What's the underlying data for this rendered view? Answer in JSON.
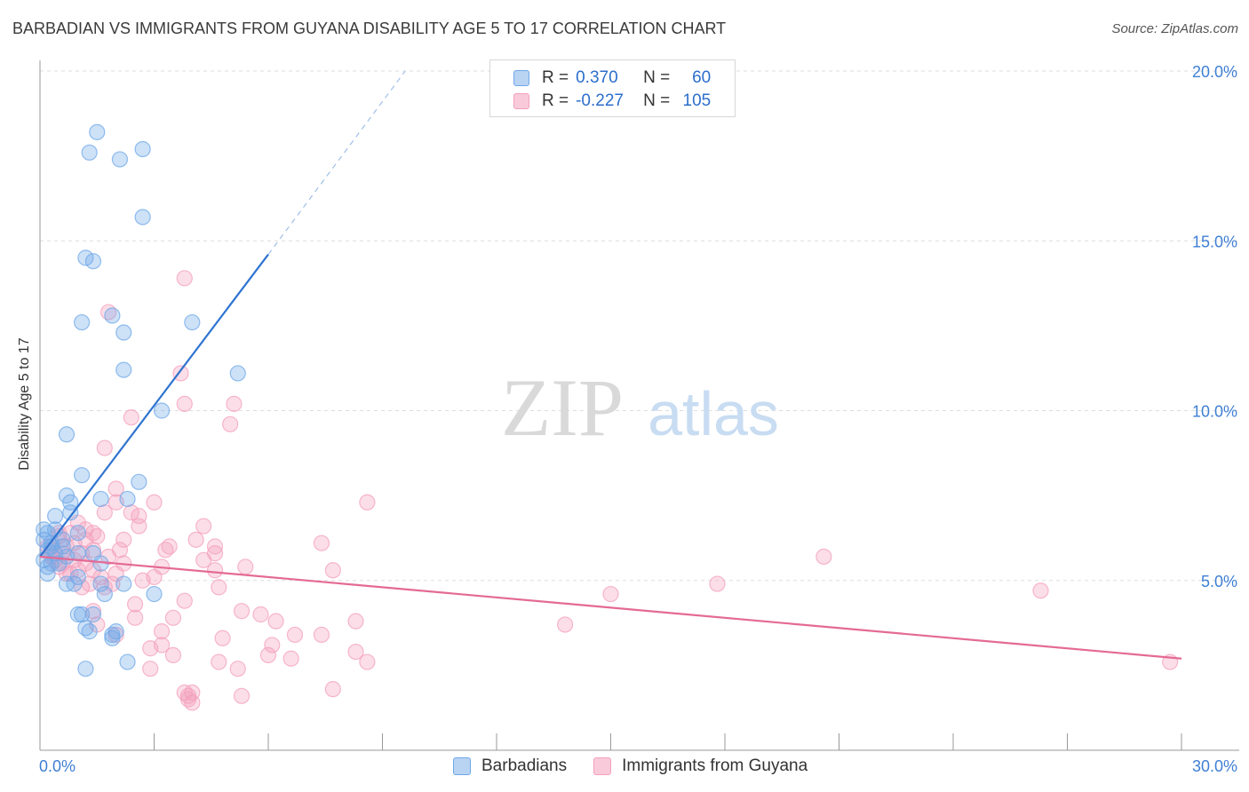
{
  "header": {
    "title": "BARBADIAN VS IMMIGRANTS FROM GUYANA DISABILITY AGE 5 TO 17 CORRELATION CHART",
    "source": "Source: ZipAtlas.com"
  },
  "watermark": {
    "zip": "ZIP",
    "atlas": "atlas"
  },
  "stats_legend": {
    "rows": [
      {
        "r_label": "R =",
        "r_value": "0.370",
        "n_label": "N =",
        "n_value": "60"
      },
      {
        "r_label": "R =",
        "r_value": "-0.227",
        "n_label": "N =",
        "n_value": "105"
      }
    ]
  },
  "colors": {
    "blue": "#6fa8e8",
    "blue_line": "#2f74d0",
    "pink": "#f4a0bc",
    "pink_line": "#e46a95",
    "tick_text": "#3f7fd4",
    "grid": "#dddddd"
  },
  "chart_data": {
    "type": "scatter",
    "title": "BARBADIAN VS IMMIGRANTS FROM GUYANA DISABILITY AGE 5 TO 17 CORRELATION CHART",
    "xlabel": "",
    "ylabel": "Disability Age 5 to 17",
    "xlim": [
      0,
      30
    ],
    "ylim": [
      0,
      20
    ],
    "x_tick_labels": [
      "0.0%",
      "30.0%"
    ],
    "y_ticks": [
      5,
      10,
      15,
      20
    ],
    "y_tick_labels": [
      "5.0%",
      "10.0%",
      "15.0%",
      "20.0%"
    ],
    "grid": true,
    "legend_position": "bottom",
    "series": [
      {
        "name": "Barbadians",
        "color": "#6fa8e8",
        "trend": {
          "x": [
            0.0,
            6.0
          ],
          "y": [
            5.7,
            14.6
          ],
          "dashed_x": [
            6.0,
            9.6
          ],
          "dashed_y": [
            14.6,
            20.0
          ]
        },
        "points": [
          [
            1.5,
            18.2
          ],
          [
            1.3,
            17.6
          ],
          [
            2.1,
            17.4
          ],
          [
            2.7,
            17.7
          ],
          [
            2.7,
            15.7
          ],
          [
            1.2,
            14.5
          ],
          [
            1.4,
            14.4
          ],
          [
            1.1,
            12.6
          ],
          [
            1.9,
            12.8
          ],
          [
            2.2,
            12.3
          ],
          [
            4.0,
            12.6
          ],
          [
            5.2,
            11.1
          ],
          [
            2.2,
            11.2
          ],
          [
            3.2,
            10.0
          ],
          [
            0.7,
            9.3
          ],
          [
            1.1,
            8.1
          ],
          [
            2.6,
            7.9
          ],
          [
            0.7,
            7.5
          ],
          [
            0.8,
            7.3
          ],
          [
            1.6,
            7.4
          ],
          [
            2.3,
            7.4
          ],
          [
            0.4,
            6.9
          ],
          [
            0.8,
            7.0
          ],
          [
            0.1,
            6.5
          ],
          [
            0.2,
            6.4
          ],
          [
            0.4,
            6.5
          ],
          [
            1.0,
            6.4
          ],
          [
            0.1,
            6.2
          ],
          [
            0.3,
            6.1
          ],
          [
            0.6,
            6.0
          ],
          [
            0.2,
            5.9
          ],
          [
            0.4,
            5.8
          ],
          [
            0.7,
            5.7
          ],
          [
            1.4,
            5.8
          ],
          [
            0.1,
            5.6
          ],
          [
            0.3,
            5.5
          ],
          [
            0.5,
            5.5
          ],
          [
            0.2,
            5.4
          ],
          [
            1.6,
            5.5
          ],
          [
            0.2,
            5.2
          ],
          [
            1.0,
            5.1
          ],
          [
            0.7,
            4.9
          ],
          [
            0.9,
            4.9
          ],
          [
            1.6,
            4.9
          ],
          [
            2.2,
            4.9
          ],
          [
            1.7,
            4.6
          ],
          [
            3.0,
            4.6
          ],
          [
            1.0,
            4.0
          ],
          [
            1.1,
            4.0
          ],
          [
            1.4,
            4.0
          ],
          [
            1.2,
            3.6
          ],
          [
            1.3,
            3.5
          ],
          [
            1.9,
            3.4
          ],
          [
            2.0,
            3.5
          ],
          [
            1.9,
            3.3
          ],
          [
            1.2,
            2.4
          ],
          [
            2.3,
            2.6
          ],
          [
            1.0,
            5.8
          ],
          [
            0.6,
            6.2
          ],
          [
            0.3,
            6.0
          ]
        ]
      },
      {
        "name": "Immigrants from Guyana",
        "color": "#f4a0bc",
        "trend": {
          "x": [
            0.0,
            30.0
          ],
          "y": [
            5.7,
            2.7
          ]
        },
        "points": [
          [
            3.8,
            13.9
          ],
          [
            1.8,
            12.9
          ],
          [
            3.7,
            11.1
          ],
          [
            3.8,
            10.2
          ],
          [
            5.1,
            10.2
          ],
          [
            2.4,
            9.8
          ],
          [
            5.0,
            9.6
          ],
          [
            1.7,
            8.9
          ],
          [
            2.0,
            7.7
          ],
          [
            2.0,
            7.3
          ],
          [
            3.0,
            7.3
          ],
          [
            8.6,
            7.3
          ],
          [
            2.4,
            7.0
          ],
          [
            1.7,
            7.0
          ],
          [
            4.3,
            6.6
          ],
          [
            2.6,
            6.6
          ],
          [
            1.2,
            6.5
          ],
          [
            0.8,
            6.4
          ],
          [
            1.4,
            6.4
          ],
          [
            0.5,
            6.3
          ],
          [
            1.2,
            6.2
          ],
          [
            4.1,
            6.2
          ],
          [
            4.6,
            6.0
          ],
          [
            7.4,
            6.1
          ],
          [
            0.7,
            6.0
          ],
          [
            0.3,
            5.9
          ],
          [
            1.4,
            5.9
          ],
          [
            3.3,
            5.9
          ],
          [
            4.6,
            5.8
          ],
          [
            0.6,
            5.8
          ],
          [
            1.1,
            5.8
          ],
          [
            1.8,
            5.7
          ],
          [
            20.6,
            5.7
          ],
          [
            0.4,
            5.6
          ],
          [
            0.9,
            5.6
          ],
          [
            2.2,
            5.5
          ],
          [
            3.2,
            5.4
          ],
          [
            5.4,
            5.4
          ],
          [
            7.7,
            5.3
          ],
          [
            0.5,
            5.4
          ],
          [
            1.0,
            5.3
          ],
          [
            1.4,
            5.3
          ],
          [
            0.8,
            5.2
          ],
          [
            2.0,
            5.2
          ],
          [
            4.6,
            5.3
          ],
          [
            1.6,
            5.1
          ],
          [
            1.3,
            4.9
          ],
          [
            1.9,
            4.9
          ],
          [
            4.7,
            4.8
          ],
          [
            17.8,
            4.9
          ],
          [
            15.0,
            4.6
          ],
          [
            26.3,
            4.7
          ],
          [
            2.5,
            4.3
          ],
          [
            3.8,
            4.4
          ],
          [
            1.4,
            4.1
          ],
          [
            5.3,
            4.1
          ],
          [
            5.8,
            4.0
          ],
          [
            2.5,
            3.9
          ],
          [
            3.5,
            3.9
          ],
          [
            6.2,
            3.8
          ],
          [
            8.3,
            3.8
          ],
          [
            1.5,
            3.7
          ],
          [
            3.2,
            3.5
          ],
          [
            6.7,
            3.4
          ],
          [
            2.0,
            3.4
          ],
          [
            4.8,
            3.3
          ],
          [
            7.4,
            3.4
          ],
          [
            13.8,
            3.7
          ],
          [
            3.2,
            3.1
          ],
          [
            2.9,
            3.0
          ],
          [
            6.1,
            3.1
          ],
          [
            8.3,
            2.9
          ],
          [
            3.5,
            2.8
          ],
          [
            6.0,
            2.8
          ],
          [
            6.6,
            2.7
          ],
          [
            4.7,
            2.6
          ],
          [
            8.6,
            2.6
          ],
          [
            29.7,
            2.6
          ],
          [
            5.2,
            2.4
          ],
          [
            2.9,
            2.4
          ],
          [
            3.8,
            1.7
          ],
          [
            4.0,
            1.7
          ],
          [
            3.9,
            1.6
          ],
          [
            5.3,
            1.6
          ],
          [
            3.9,
            1.5
          ],
          [
            7.7,
            1.8
          ],
          [
            4.0,
            1.4
          ],
          [
            1.1,
            4.8
          ],
          [
            2.7,
            5.0
          ],
          [
            0.2,
            6.0
          ],
          [
            0.6,
            5.5
          ],
          [
            0.9,
            6.1
          ],
          [
            1.2,
            5.5
          ],
          [
            1.7,
            4.8
          ],
          [
            2.2,
            6.2
          ],
          [
            3.0,
            5.1
          ],
          [
            0.3,
            5.7
          ],
          [
            0.5,
            6.4
          ],
          [
            0.7,
            5.2
          ],
          [
            1.0,
            6.7
          ],
          [
            1.5,
            6.3
          ],
          [
            2.1,
            5.9
          ],
          [
            2.6,
            6.9
          ],
          [
            3.4,
            6.0
          ],
          [
            4.3,
            5.6
          ]
        ]
      }
    ]
  }
}
